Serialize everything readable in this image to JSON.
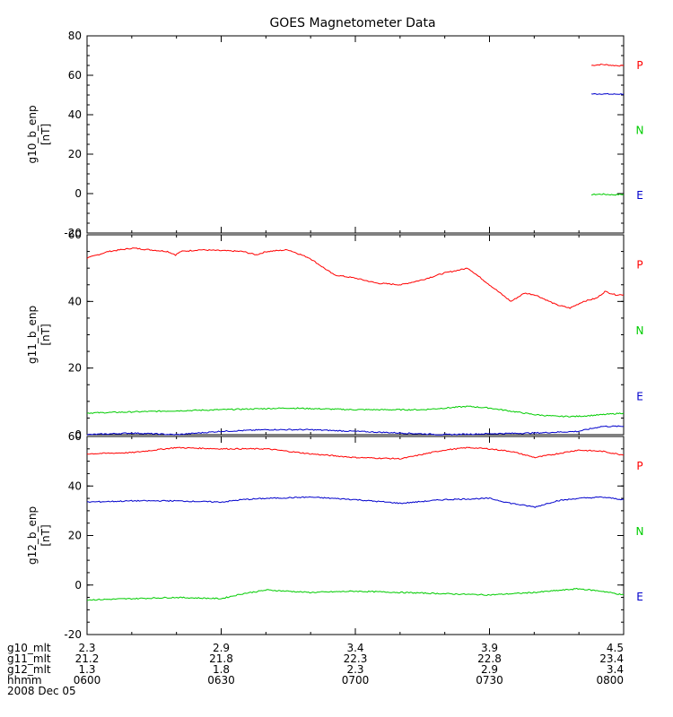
{
  "chart_data": {
    "type": "line",
    "title": "GOES Magnetometer Data",
    "colors": {
      "P": "#ff0000",
      "N": "#00cc00",
      "E": "#0000cc",
      "axis": "#000000"
    },
    "x_range_hours": [
      6.0,
      8.0
    ],
    "panels": [
      {
        "ylabel": "g10_b_enp",
        "unit": "[nT]",
        "ylim": [
          -20,
          80
        ],
        "yticks": [
          -20,
          0,
          20,
          40,
          60,
          80
        ],
        "legend": [
          "P",
          "N",
          "E"
        ],
        "series": [
          {
            "name": "P",
            "x": [
              7.88,
              7.92,
              7.96,
              8.0
            ],
            "y": [
              65,
              65.5,
              65,
              64.8
            ]
          },
          {
            "name": "N",
            "x": [
              7.88,
              7.92,
              7.96,
              8.0
            ],
            "y": [
              -0.5,
              -0.3,
              -0.6,
              -0.4
            ]
          },
          {
            "name": "E",
            "x": [
              7.88,
              7.92,
              7.96,
              8.0
            ],
            "y": [
              50.5,
              50.6,
              50.4,
              50.5
            ]
          }
        ]
      },
      {
        "ylabel": "g11_b_enp",
        "unit": "[nT]",
        "ylim": [
          0,
          60
        ],
        "yticks": [
          0,
          20,
          40,
          60
        ],
        "legend": [
          "P",
          "N",
          "E"
        ],
        "series": [
          {
            "name": "P",
            "x": [
              6.0,
              6.08,
              6.17,
              6.3,
              6.33,
              6.35,
              6.42,
              6.58,
              6.63,
              6.67,
              6.75,
              6.83,
              6.92,
              7.0,
              7.08,
              7.17,
              7.25,
              7.33,
              7.42,
              7.5,
              7.58,
              7.63,
              7.67,
              7.75,
              7.8,
              7.85,
              7.9,
              7.93,
              7.97,
              8.0
            ],
            "y": [
              53,
              55,
              56,
              55,
              54,
              55,
              55.5,
              55,
              54,
              55,
              55.5,
              53,
              48,
              47,
              45.5,
              45,
              46.5,
              48.5,
              50,
              45,
              40,
              42.5,
              42,
              39,
              38,
              40,
              41,
              43,
              42,
              42
            ]
          },
          {
            "name": "N",
            "x": [
              6.0,
              6.25,
              6.5,
              6.75,
              7.0,
              7.25,
              7.42,
              7.5,
              7.67,
              7.75,
              7.83,
              7.92,
              8.0
            ],
            "y": [
              6.5,
              7,
              7.5,
              8,
              7.5,
              7.5,
              8.5,
              8,
              6,
              5.5,
              5.5,
              6,
              6.5
            ]
          },
          {
            "name": "E",
            "x": [
              6.0,
              6.17,
              6.33,
              6.5,
              6.67,
              6.83,
              7.0,
              7.17,
              7.33,
              7.5,
              7.67,
              7.83,
              7.92,
              8.0
            ],
            "y": [
              0,
              0.5,
              0,
              1,
              1.5,
              1.5,
              1,
              0.5,
              0,
              0.3,
              0.5,
              1,
              2.5,
              2.5
            ]
          }
        ]
      },
      {
        "ylabel": "g12_b_enp",
        "unit": "[nT]",
        "ylim": [
          -20,
          60
        ],
        "yticks": [
          -20,
          0,
          20,
          40,
          60
        ],
        "legend": [
          "P",
          "N",
          "E"
        ],
        "series": [
          {
            "name": "P",
            "x": [
              6.0,
              6.17,
              6.33,
              6.5,
              6.67,
              6.83,
              7.0,
              7.17,
              7.33,
              7.42,
              7.5,
              7.58,
              7.67,
              7.75,
              7.83,
              7.92,
              8.0
            ],
            "y": [
              53,
              53.5,
              55.5,
              55,
              55,
              53,
              51.5,
              51,
              54.5,
              55.5,
              55,
              54,
              51.5,
              53,
              54.5,
              54,
              52.5
            ]
          },
          {
            "name": "N",
            "x": [
              6.0,
              6.17,
              6.33,
              6.5,
              6.58,
              6.67,
              6.83,
              7.0,
              7.17,
              7.33,
              7.5,
              7.67,
              7.83,
              7.92,
              8.0
            ],
            "y": [
              -6,
              -5.5,
              -5,
              -5.5,
              -3.5,
              -2,
              -3,
              -2.5,
              -3,
              -3.5,
              -4,
              -3,
              -1.5,
              -2.5,
              -4
            ]
          },
          {
            "name": "E",
            "x": [
              6.0,
              6.17,
              6.33,
              6.5,
              6.58,
              6.67,
              6.83,
              7.0,
              7.17,
              7.33,
              7.5,
              7.58,
              7.67,
              7.75,
              7.83,
              7.92,
              8.0
            ],
            "y": [
              33.5,
              34,
              34,
              33.5,
              34.5,
              35,
              35.5,
              34.5,
              33,
              34.5,
              35,
              33,
              31.5,
              34,
              35,
              35.5,
              34.5
            ]
          }
        ]
      }
    ],
    "time_table": {
      "rows": [
        {
          "label": "g10_mlt",
          "values": [
            "2.3",
            "2.9",
            "3.4",
            "3.9",
            "4.5"
          ]
        },
        {
          "label": "g11_mlt",
          "values": [
            "21.2",
            "21.8",
            "22.3",
            "22.8",
            "23.4"
          ]
        },
        {
          "label": "g12_mlt",
          "values": [
            "1.3",
            "1.8",
            "2.3",
            "2.9",
            "3.4"
          ]
        },
        {
          "label": "hhmm",
          "values": [
            "0600",
            "0630",
            "0700",
            "0730",
            "0800"
          ]
        }
      ],
      "date": "2008 Dec 05"
    }
  }
}
